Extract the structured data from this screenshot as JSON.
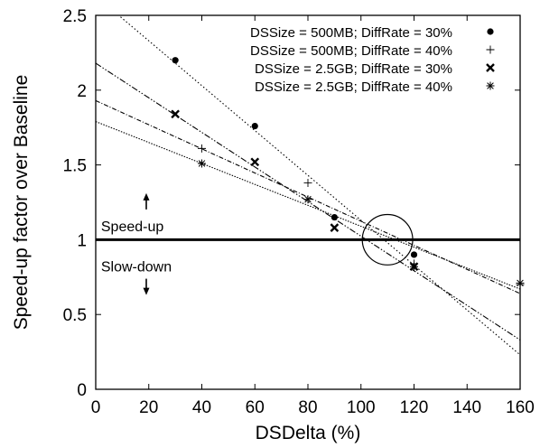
{
  "chart_data": {
    "type": "scatter",
    "xlabel": "DSDelta (%)",
    "ylabel": "Speed-up factor over Baseline",
    "xlim": [
      0,
      160
    ],
    "ylim": [
      0,
      2.5
    ],
    "xticks": [
      "0",
      "20",
      "40",
      "60",
      "80",
      "100",
      "120",
      "140",
      "160"
    ],
    "yticks": [
      "0",
      "0.5",
      "1",
      "1.5",
      "2",
      "2.5"
    ],
    "legend_position": "top-right",
    "grid": false,
    "baseline": 1,
    "series": [
      {
        "name": "DSSize = 500MB; DiffRate = 30%",
        "marker": "dot",
        "x": [
          30,
          60,
          90,
          120
        ],
        "y": [
          2.2,
          1.76,
          1.15,
          0.9
        ],
        "fit": [
          [
            0,
            2.63
          ],
          [
            160,
            0.23
          ]
        ],
        "dash": "1.5,2.5"
      },
      {
        "name": "DSSize = 500MB; DiffRate = 40%",
        "marker": "plus",
        "x": [
          40,
          80,
          120,
          160
        ],
        "y": [
          1.61,
          1.38,
          0.84,
          0.7
        ],
        "fit": [
          [
            0,
            1.93
          ],
          [
            160,
            0.64
          ]
        ],
        "dash": "5,2,1,2"
      },
      {
        "name": "DSSize = 2.5GB; DiffRate = 30%",
        "marker": "cross",
        "x": [
          30,
          60,
          90,
          120
        ],
        "y": [
          1.84,
          1.52,
          1.08,
          0.82
        ],
        "fit": [
          [
            0,
            2.18
          ],
          [
            160,
            0.33
          ]
        ],
        "dash": "7,2,1.5,2,1.5,2"
      },
      {
        "name": "DSSize = 2.5GB; DiffRate = 40%",
        "marker": "asterisk",
        "x": [
          40,
          80,
          120,
          160
        ],
        "y": [
          1.51,
          1.27,
          0.82,
          0.71
        ],
        "fit": [
          [
            0,
            1.79
          ],
          [
            160,
            0.67
          ]
        ],
        "dash": "1.5,1.5"
      }
    ],
    "annotations": [
      {
        "text": "Speed-up",
        "x": 2,
        "y": 1.13,
        "arrow": "up"
      },
      {
        "text": "Slow-down",
        "x": 2,
        "y": 0.86,
        "arrow": "down"
      }
    ],
    "circle": {
      "cx": 110,
      "cy": 1.0,
      "r_x": 9.5
    }
  }
}
